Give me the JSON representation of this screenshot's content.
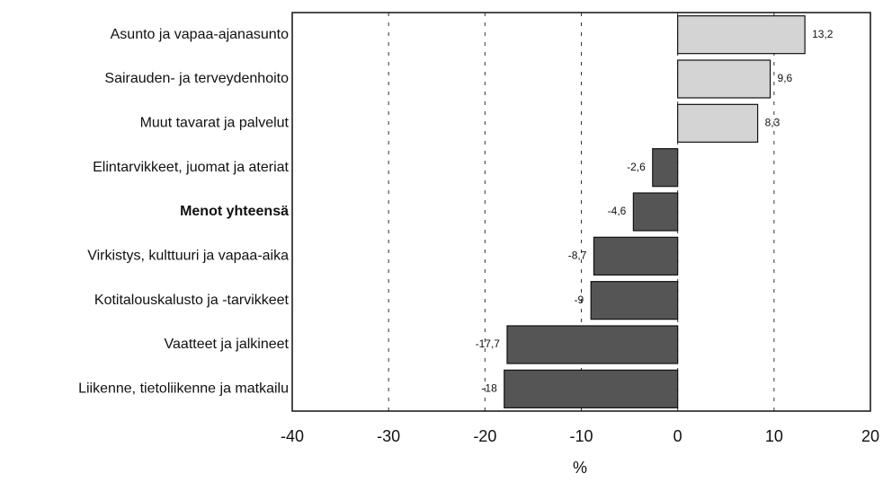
{
  "chart_data": {
    "type": "barh",
    "categories": [
      "Asunto ja vapaa-ajanasunto",
      "Sairauden- ja terveydenhoito",
      "Muut tavarat ja palvelut",
      "Elintarvikkeet, juomat ja ateriat",
      "Menot yhteensä",
      "Virkistys, kulttuuri ja vapaa-aika",
      "Kotitalouskalusto ja -tarvikkeet",
      "Vaatteet ja jalkineet",
      "Liikenne, tietoliikenne ja matkailu"
    ],
    "values": [
      13.2,
      9.6,
      8.3,
      -2.6,
      -4.6,
      -8.7,
      -9,
      -17.7,
      -18
    ],
    "value_labels": [
      "13,2",
      "9,6",
      "8,3",
      "-2,6",
      "-4,6",
      "-8,7",
      "-9",
      "-17,7",
      "-18"
    ],
    "colors": [
      "#d4d4d4",
      "#d4d4d4",
      "#d4d4d4",
      "#555555",
      "#555555",
      "#555555",
      "#555555",
      "#555555",
      "#555555"
    ],
    "bold_categories": [
      4
    ],
    "xlabel": "%",
    "xlim": [
      -40,
      20
    ],
    "xticks": [
      -40,
      -30,
      -20,
      -10,
      0,
      10,
      20
    ],
    "grid": true
  }
}
